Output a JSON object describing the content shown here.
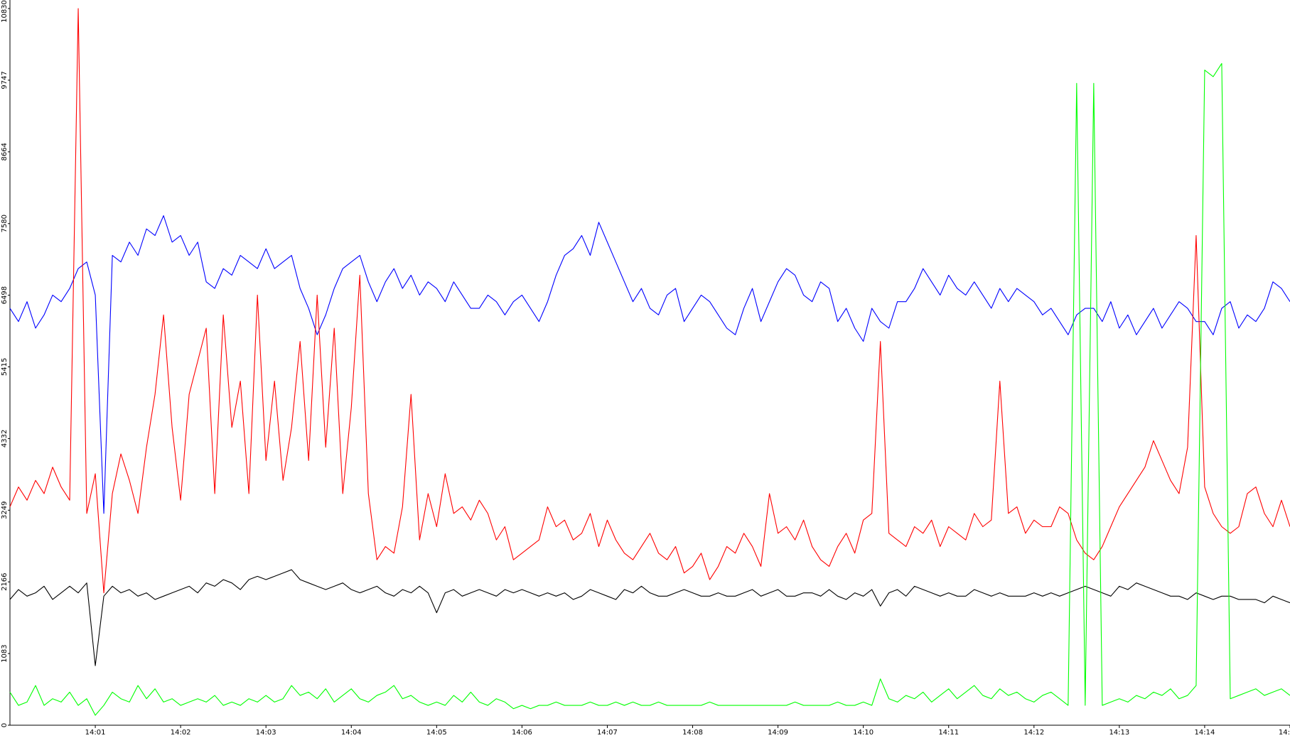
{
  "chart_data": {
    "type": "line",
    "x": [
      0,
      0.1,
      0.2,
      0.3,
      0.4,
      0.5,
      0.6,
      0.7,
      0.8,
      0.9,
      1,
      1.1,
      1.2,
      1.3,
      1.4,
      1.5,
      1.6,
      1.7,
      1.8,
      1.9,
      2,
      2.1,
      2.2,
      2.3,
      2.4,
      2.5,
      2.6,
      2.7,
      2.8,
      2.9,
      3,
      3.1,
      3.2,
      3.3,
      3.4,
      3.5,
      3.6,
      3.7,
      3.8,
      3.9,
      4,
      4.1,
      4.2,
      4.3,
      4.4,
      4.5,
      4.6,
      4.7,
      4.8,
      4.9,
      5,
      5.1,
      5.2,
      5.3,
      5.4,
      5.5,
      5.6,
      5.7,
      5.8,
      5.9,
      6,
      6.1,
      6.2,
      6.3,
      6.4,
      6.5,
      6.6,
      6.7,
      6.8,
      6.9,
      7,
      7.1,
      7.2,
      7.3,
      7.4,
      7.5,
      7.6,
      7.7,
      7.8,
      7.9,
      8,
      8.1,
      8.2,
      8.3,
      8.4,
      8.5,
      8.6,
      8.7,
      8.8,
      8.9,
      9,
      9.1,
      9.2,
      9.3,
      9.4,
      9.5,
      9.6,
      9.7,
      9.8,
      9.9,
      10,
      10.1,
      10.2,
      10.3,
      10.4,
      10.5,
      10.6,
      10.7,
      10.8,
      10.9,
      11,
      11.1,
      11.2,
      11.3,
      11.4,
      11.5,
      11.6,
      11.7,
      11.8,
      11.9,
      12,
      12.1,
      12.2,
      12.3,
      12.4,
      12.5,
      12.6,
      12.7,
      12.8,
      12.9,
      13,
      13.1,
      13.2,
      13.3,
      13.4,
      13.5,
      13.6,
      13.7,
      13.8,
      13.9,
      14,
      14.1,
      14.2,
      14.3,
      14.4,
      14.5,
      14.6,
      14.7,
      14.8,
      14.9,
      15
    ],
    "series": [
      {
        "color": "#0000ff",
        "values": [
          6300,
          6100,
          6400,
          6000,
          6200,
          6500,
          6400,
          6600,
          6900,
          7000,
          6500,
          3200,
          7100,
          7000,
          7300,
          7100,
          7500,
          7400,
          7700,
          7300,
          7400,
          7100,
          7300,
          6700,
          6600,
          6900,
          6800,
          7100,
          7000,
          6900,
          7200,
          6900,
          7000,
          7100,
          6600,
          6300,
          5900,
          6200,
          6600,
          6900,
          7000,
          7100,
          6700,
          6400,
          6700,
          6900,
          6600,
          6800,
          6500,
          6700,
          6600,
          6400,
          6700,
          6500,
          6300,
          6300,
          6500,
          6400,
          6200,
          6400,
          6500,
          6300,
          6100,
          6400,
          6800,
          7100,
          7200,
          7400,
          7100,
          7600,
          7300,
          7000,
          6700,
          6400,
          6600,
          6300,
          6200,
          6500,
          6600,
          6100,
          6300,
          6500,
          6400,
          6200,
          6000,
          5900,
          6300,
          6600,
          6100,
          6400,
          6700,
          6900,
          6800,
          6500,
          6400,
          6700,
          6600,
          6100,
          6300,
          6000,
          5800,
          6300,
          6100,
          6000,
          6400,
          6400,
          6600,
          6900,
          6700,
          6500,
          6800,
          6600,
          6500,
          6700,
          6500,
          6300,
          6600,
          6400,
          6600,
          6500,
          6400,
          6200,
          6300,
          6100,
          5900,
          6200,
          6300,
          6300,
          6100,
          6400,
          6000,
          6200,
          5900,
          6100,
          6300,
          6000,
          6200,
          6400,
          6300,
          6100,
          6100,
          5900,
          6300,
          6400,
          6000,
          6200,
          6100,
          6300,
          6700,
          6600,
          6400
        ]
      },
      {
        "color": "#ff0000",
        "values": [
          3300,
          3600,
          3400,
          3700,
          3500,
          3900,
          3600,
          3400,
          10830,
          3200,
          3800,
          2000,
          3500,
          4100,
          3700,
          3200,
          4200,
          5000,
          6200,
          4500,
          3400,
          5000,
          5500,
          6000,
          3500,
          6200,
          4500,
          5200,
          3500,
          6500,
          4000,
          5200,
          3700,
          4500,
          5800,
          4000,
          6500,
          4200,
          6000,
          3500,
          4800,
          6800,
          3500,
          2500,
          2700,
          2600,
          3300,
          5000,
          2800,
          3500,
          3000,
          3800,
          3200,
          3300,
          3100,
          3400,
          3200,
          2800,
          3000,
          2500,
          2600,
          2700,
          2800,
          3300,
          3000,
          3100,
          2800,
          2900,
          3200,
          2700,
          3100,
          2800,
          2600,
          2500,
          2700,
          2900,
          2600,
          2500,
          2700,
          2300,
          2400,
          2600,
          2200,
          2400,
          2700,
          2600,
          2900,
          2700,
          2400,
          3500,
          2900,
          3000,
          2800,
          3100,
          2700,
          2500,
          2400,
          2700,
          2900,
          2600,
          3100,
          3200,
          5800,
          2900,
          2800,
          2700,
          3000,
          2900,
          3100,
          2700,
          3000,
          2900,
          2800,
          3200,
          3000,
          3100,
          5200,
          3200,
          3300,
          2900,
          3100,
          3000,
          3000,
          3300,
          3200,
          2800,
          2600,
          2500,
          2700,
          3000,
          3300,
          3500,
          3700,
          3900,
          4300,
          4000,
          3700,
          3500,
          4200,
          7400,
          3600,
          3200,
          3000,
          2900,
          3000,
          3500,
          3600,
          3200,
          3000,
          3400,
          3000
        ]
      },
      {
        "color": "#000000",
        "values": [
          1900,
          2050,
          1950,
          2000,
          2100,
          1900,
          2000,
          2100,
          2000,
          2150,
          900,
          1950,
          2100,
          2000,
          2050,
          1950,
          2000,
          1900,
          1950,
          2000,
          2050,
          2100,
          2000,
          2150,
          2100,
          2200,
          2150,
          2050,
          2200,
          2250,
          2200,
          2250,
          2300,
          2350,
          2200,
          2150,
          2100,
          2050,
          2100,
          2150,
          2050,
          2000,
          2050,
          2100,
          2000,
          1950,
          2050,
          2000,
          2100,
          2000,
          1700,
          2000,
          2050,
          1950,
          2000,
          2050,
          2000,
          1950,
          2050,
          2000,
          2050,
          2000,
          1950,
          2000,
          1950,
          2000,
          1900,
          1950,
          2050,
          2000,
          1950,
          1900,
          2050,
          2000,
          2100,
          2000,
          1950,
          1950,
          2000,
          2050,
          2000,
          1950,
          1950,
          2000,
          1950,
          1950,
          2000,
          2050,
          1950,
          2000,
          2050,
          1950,
          1950,
          2000,
          2000,
          1950,
          2050,
          1950,
          1900,
          2000,
          1950,
          2050,
          1800,
          2000,
          2050,
          1950,
          2100,
          2050,
          2000,
          1950,
          2000,
          1950,
          1950,
          2050,
          2000,
          1950,
          2000,
          1950,
          1950,
          1950,
          2000,
          1950,
          2000,
          1950,
          2000,
          2050,
          2100,
          2050,
          2000,
          1950,
          2100,
          2050,
          2150,
          2100,
          2050,
          2000,
          1950,
          1950,
          1900,
          2000,
          1950,
          1900,
          1950,
          1950,
          1900,
          1900,
          1900,
          1850,
          1950,
          1900,
          1850
        ]
      },
      {
        "color": "#00ff00",
        "values": [
          500,
          300,
          350,
          600,
          300,
          400,
          350,
          500,
          300,
          400,
          150,
          300,
          500,
          400,
          350,
          600,
          400,
          550,
          350,
          400,
          300,
          350,
          400,
          350,
          450,
          300,
          350,
          300,
          400,
          350,
          450,
          350,
          400,
          600,
          450,
          500,
          400,
          550,
          350,
          450,
          550,
          400,
          350,
          450,
          500,
          600,
          400,
          450,
          350,
          300,
          350,
          300,
          450,
          350,
          500,
          350,
          300,
          400,
          350,
          250,
          300,
          250,
          300,
          300,
          350,
          300,
          300,
          300,
          350,
          300,
          300,
          350,
          300,
          350,
          300,
          300,
          350,
          300,
          300,
          300,
          300,
          300,
          350,
          300,
          300,
          300,
          300,
          300,
          300,
          300,
          300,
          300,
          350,
          300,
          300,
          300,
          300,
          350,
          300,
          300,
          350,
          300,
          700,
          400,
          350,
          450,
          400,
          500,
          350,
          450,
          550,
          400,
          500,
          600,
          450,
          400,
          550,
          450,
          500,
          400,
          350,
          450,
          500,
          400,
          300,
          9700,
          300,
          9700,
          300,
          350,
          400,
          350,
          450,
          400,
          500,
          450,
          550,
          400,
          450,
          600,
          9900,
          9800,
          10000,
          400,
          450,
          500,
          550,
          450,
          500,
          550,
          450
        ]
      }
    ],
    "xlim": [
      0,
      15
    ],
    "xticks": [
      {
        "value": 1,
        "label": "14:01"
      },
      {
        "value": 2,
        "label": "14:02"
      },
      {
        "value": 3,
        "label": "14:03"
      },
      {
        "value": 4,
        "label": "14:04"
      },
      {
        "value": 5,
        "label": "14:05"
      },
      {
        "value": 6,
        "label": "14:06"
      },
      {
        "value": 7,
        "label": "14:07"
      },
      {
        "value": 8,
        "label": "14:08"
      },
      {
        "value": 9,
        "label": "14:09"
      },
      {
        "value": 10,
        "label": "14:10"
      },
      {
        "value": 11,
        "label": "14:11"
      },
      {
        "value": 12,
        "label": "14:12"
      },
      {
        "value": 13,
        "label": "14:13"
      },
      {
        "value": 14,
        "label": "14:14"
      },
      {
        "value": 15,
        "label": "14:"
      }
    ],
    "ylim": [
      0,
      10830
    ],
    "yticks": [
      0,
      1083,
      2166,
      3249,
      4332,
      5415,
      6498,
      7580,
      8664,
      9747,
      10830
    ],
    "grid": false
  }
}
